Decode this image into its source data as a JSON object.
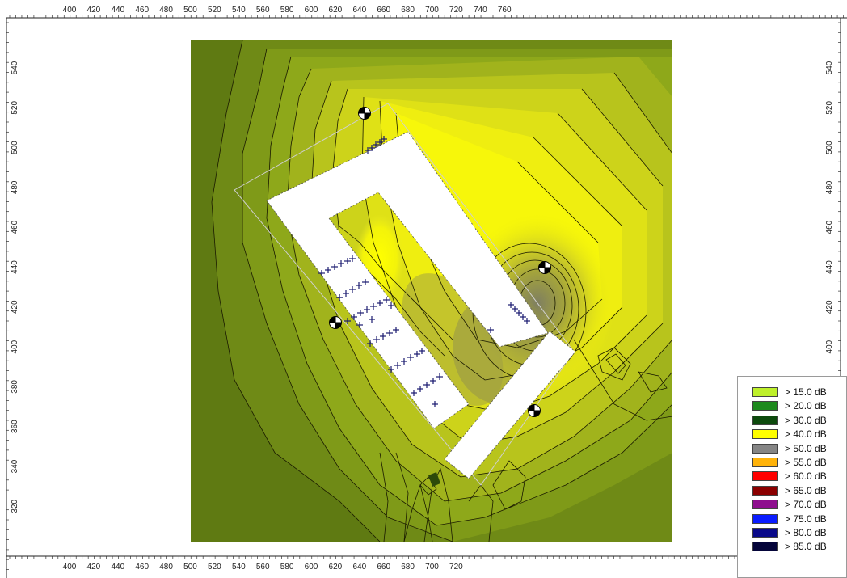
{
  "map": {
    "x_ticks_top": [
      "400",
      "420",
      "440",
      "460",
      "480",
      "500",
      "520",
      "540",
      "560",
      "580",
      "600",
      "620",
      "640",
      "660",
      "680",
      "700",
      "720",
      "740",
      "760"
    ],
    "x_ticks_bottom": [
      "400",
      "420",
      "440",
      "460",
      "480",
      "500",
      "520",
      "540",
      "560",
      "580",
      "600",
      "620",
      "640",
      "660",
      "680",
      "700",
      "720"
    ],
    "y_ticks": [
      "540",
      "520",
      "500",
      "480",
      "460",
      "440",
      "420",
      "400",
      "380",
      "360",
      "340",
      "320"
    ]
  },
  "legend": {
    "items": [
      {
        "label": "> 15.0 dB",
        "color": "#bef02a"
      },
      {
        "label": "> 20.0 dB",
        "color": "#1e8a1e"
      },
      {
        "label": "> 30.0 dB",
        "color": "#0d4a0d"
      },
      {
        "label": "> 40.0 dB",
        "color": "#ffff00"
      },
      {
        "label": "> 50.0 dB",
        "color": "#858585"
      },
      {
        "label": "> 55.0 dB",
        "color": "#ffb30a"
      },
      {
        "label": "> 60.0 dB",
        "color": "#ff0000"
      },
      {
        "label": "> 65.0 dB",
        "color": "#8b0000"
      },
      {
        "label": "> 70.0 dB",
        "color": "#8e0f8e"
      },
      {
        "label": "> 75.0 dB",
        "color": "#0a1cff"
      },
      {
        "label": "> 80.0 dB",
        "color": "#0a0a8a"
      },
      {
        "label": "> 85.0 dB",
        "color": "#05053a"
      }
    ]
  }
}
